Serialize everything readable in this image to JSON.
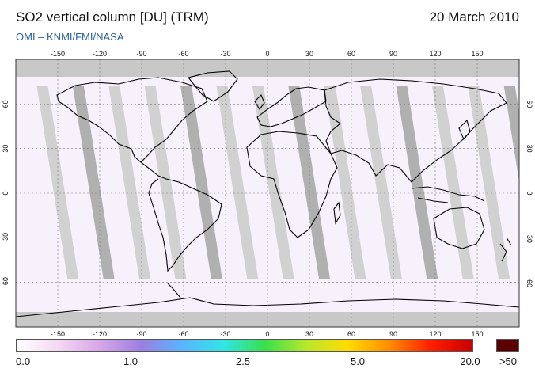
{
  "header": {
    "title": "SO2 vertical column [DU] (TRM)",
    "date": "20 March 2010",
    "subtitle": "OMI  –  KNMI/FMI/NASA"
  },
  "map": {
    "lon_ticks": [
      "-150",
      "-120",
      "-90",
      "-60",
      "-30",
      "0",
      "30",
      "60",
      "90",
      "120",
      "150"
    ],
    "lat_ticks": [
      "60",
      "30",
      "0",
      "-30",
      "-60"
    ],
    "colors": {
      "no_data": "#c8c8c8",
      "swath_gap_dark": "#a9a9a9",
      "swath_gap_light": "#cdcdcd",
      "coastline": "#000000",
      "background": "#f6f1fb"
    }
  },
  "colorbar": {
    "labels": [
      "0.0",
      "1.0",
      "2.5",
      "5.0",
      "20.0",
      ">50"
    ],
    "over_color": "#5a0000",
    "stops": [
      "#ffffff",
      "#f4d8f4",
      "#d7a6e8",
      "#9b7fe0",
      "#5ab4ff",
      "#2fe6e6",
      "#38e04a",
      "#b8e82c",
      "#ffdc00",
      "#ff8c00",
      "#ff1e00",
      "#c80000"
    ]
  }
}
